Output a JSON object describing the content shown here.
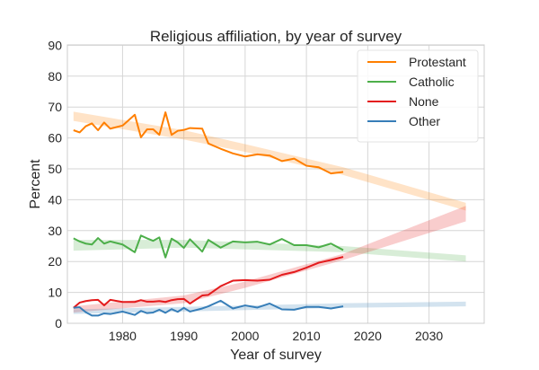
{
  "chart_data": {
    "type": "line",
    "title": "Religious affiliation, by year of survey",
    "xlabel": "Year of survey",
    "ylabel": "Percent",
    "xlim": [
      1971,
      2039
    ],
    "ylim": [
      0,
      90
    ],
    "xticks": [
      1980,
      1990,
      2000,
      2010,
      2020,
      2030
    ],
    "yticks": [
      0,
      10,
      20,
      30,
      40,
      50,
      60,
      70,
      80,
      90
    ],
    "grid": true,
    "legend_position": "top-right",
    "x": [
      1972,
      1973,
      1974,
      1975,
      1976,
      1977,
      1978,
      1980,
      1982,
      1983,
      1984,
      1985,
      1986,
      1987,
      1988,
      1989,
      1990,
      1991,
      1993,
      1994,
      1996,
      1998,
      2000,
      2002,
      2004,
      2006,
      2008,
      2010,
      2012,
      2014,
      2016
    ],
    "series": [
      {
        "name": "Protestant",
        "color": "#ff7f00",
        "values": [
          62.5,
          61.8,
          63.8,
          64.7,
          62.5,
          65,
          63,
          64,
          67.5,
          60.2,
          62.8,
          62.8,
          61,
          68.3,
          61,
          62.3,
          62.6,
          63.2,
          63,
          58.2,
          56.5,
          55,
          54,
          54.7,
          54.3,
          52.5,
          53.3,
          51,
          50.5,
          48.5,
          49
        ],
        "band": [
          [
            1972,
            65.5,
            68.5
          ],
          [
            1990,
            59.5,
            62.5
          ],
          [
            2000,
            55.5,
            58
          ],
          [
            2016,
            48,
            50.5
          ],
          [
            2036,
            36.5,
            39
          ]
        ]
      },
      {
        "name": "Catholic",
        "color": "#4daf4a",
        "values": [
          27.5,
          26.5,
          25.8,
          25.5,
          27.6,
          25.8,
          26.5,
          25.5,
          23,
          28.4,
          27.5,
          26.7,
          27.8,
          21.3,
          27.4,
          26.2,
          24.4,
          27.2,
          23.2,
          27,
          24.5,
          26.5,
          26.2,
          26.4,
          25.5,
          27.3,
          25.3,
          25.3,
          24.6,
          25.8,
          23.7
        ],
        "band": [
          [
            1972,
            23.5,
            27
          ],
          [
            1990,
            24.5,
            27
          ],
          [
            2016,
            23,
            25
          ],
          [
            2036,
            20,
            22
          ]
        ]
      },
      {
        "name": "None",
        "color": "#e41a1c",
        "values": [
          5,
          6.7,
          7.2,
          7.5,
          7.6,
          5.8,
          7.6,
          6.9,
          6.9,
          7.5,
          7,
          7,
          7.2,
          6.9,
          7.5,
          7.8,
          7.9,
          6.4,
          9,
          9.2,
          12,
          13.8,
          14,
          13.8,
          14.1,
          15.7,
          16.6,
          18,
          19.6,
          20.5,
          21.5
        ],
        "band": [
          [
            1972,
            3.5,
            5.5
          ],
          [
            1990,
            6.5,
            9
          ],
          [
            2000,
            11.5,
            13.5
          ],
          [
            2016,
            20.5,
            22.5
          ],
          [
            2036,
            33,
            38
          ]
        ]
      },
      {
        "name": "Other",
        "color": "#377eb8",
        "values": [
          5,
          5.2,
          3.6,
          2.5,
          2.5,
          3.2,
          3,
          3.8,
          2.7,
          4,
          3.3,
          3.5,
          4.4,
          3.4,
          4.6,
          3.7,
          5,
          3.8,
          4.8,
          5.5,
          7.3,
          4.8,
          5.8,
          5.1,
          6.4,
          4.5,
          4.4,
          5.3,
          5.3,
          4.8,
          5.5
        ],
        "band": [
          [
            1972,
            3,
            4.5
          ],
          [
            2016,
            5,
            6.5
          ],
          [
            2036,
            5.5,
            7
          ]
        ]
      }
    ]
  }
}
